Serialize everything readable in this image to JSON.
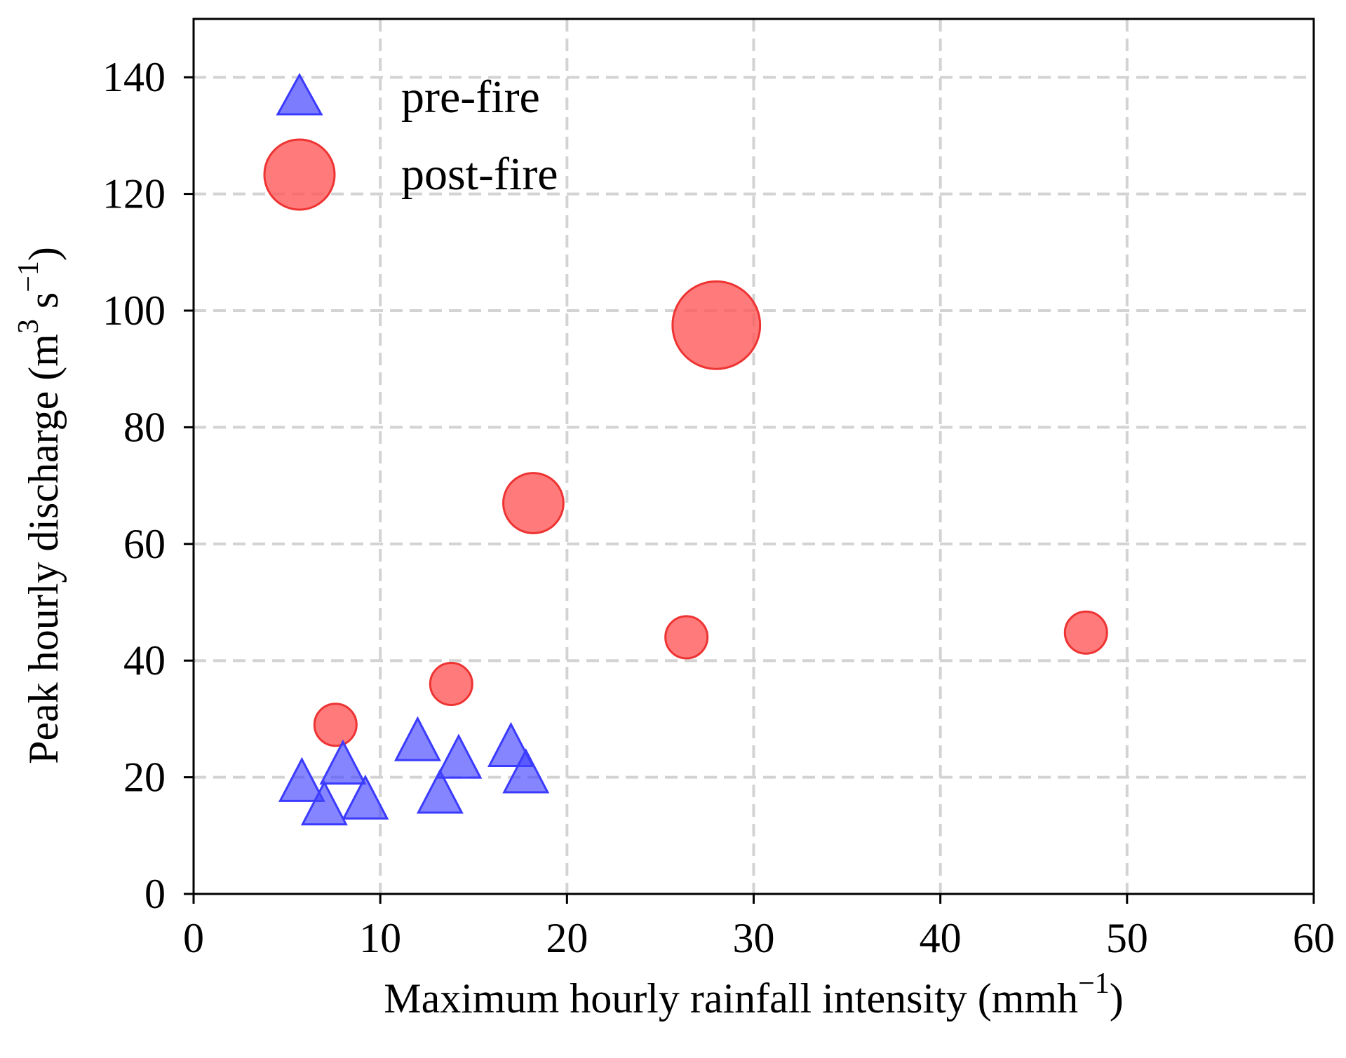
{
  "chart_data": {
    "type": "scatter",
    "title": "",
    "xlabel": "Maximum hourly rainfall intensity (mmh",
    "xlabel_sup": "−1",
    "xlabel_close": ")",
    "ylabel": "Peak hourly discharge (m",
    "ylabel_sup1": "3",
    "ylabel_mid": " s",
    "ylabel_sup2": "−1",
    "ylabel_close": ")",
    "xlim": [
      0,
      60
    ],
    "ylim": [
      0,
      150
    ],
    "xticks": [
      "0",
      "10",
      "20",
      "30",
      "40",
      "50",
      "60"
    ],
    "yticks": [
      "0",
      "20",
      "40",
      "60",
      "80",
      "100",
      "120",
      "140"
    ],
    "grid": true,
    "legend_position": "top-left",
    "series": [
      {
        "name": "pre-fire",
        "marker": "triangle",
        "color": "#4444ff",
        "points": [
          {
            "x": 5.8,
            "y": 19
          },
          {
            "x": 7.0,
            "y": 15
          },
          {
            "x": 8.0,
            "y": 22
          },
          {
            "x": 9.2,
            "y": 16
          },
          {
            "x": 12.0,
            "y": 26
          },
          {
            "x": 13.2,
            "y": 17
          },
          {
            "x": 14.2,
            "y": 23
          },
          {
            "x": 17.0,
            "y": 25
          },
          {
            "x": 17.8,
            "y": 20.5
          }
        ]
      },
      {
        "name": "post-fire",
        "marker": "circle",
        "color": "#ff6666",
        "points": [
          {
            "x": 7.6,
            "y": 29
          },
          {
            "x": 13.8,
            "y": 36
          },
          {
            "x": 18.2,
            "y": 67
          },
          {
            "x": 26.4,
            "y": 44
          },
          {
            "x": 28.0,
            "y": 97.5
          },
          {
            "x": 47.8,
            "y": 44.8
          }
        ]
      }
    ]
  }
}
